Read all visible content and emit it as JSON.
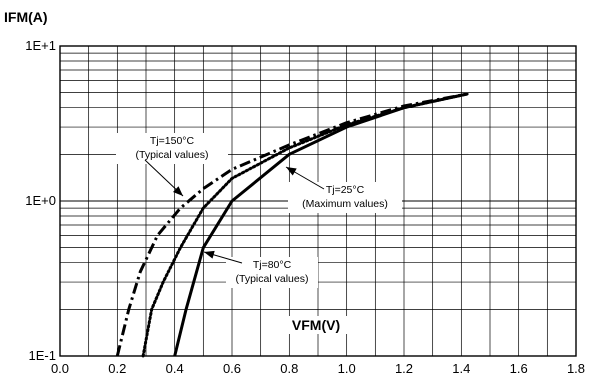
{
  "chart_data": {
    "type": "line",
    "xlabel": "VFM(V)",
    "ylabel": "IFM(A)",
    "xlim": [
      0,
      1.8
    ],
    "ylim": [
      0.1,
      10
    ],
    "yscale": "log",
    "grid": true,
    "x_ticks": [
      "0.0",
      "0.2",
      "0.4",
      "0.6",
      "0.8",
      "1.0",
      "1.2",
      "1.4",
      "1.6",
      "1.8"
    ],
    "y_ticks": [
      {
        "value": 10,
        "label": "1E+1"
      },
      {
        "value": 1,
        "label": "1E+0"
      },
      {
        "value": 0.1,
        "label": "1E-1"
      }
    ],
    "series": [
      {
        "name": "Tj=25°C (Maximum values)",
        "style": "solid",
        "points": [
          [
            0.4,
            0.1
          ],
          [
            0.44,
            0.2
          ],
          [
            0.5,
            0.5
          ],
          [
            0.6,
            1.0
          ],
          [
            0.8,
            2.0
          ],
          [
            1.0,
            3.0
          ],
          [
            1.2,
            4.0
          ],
          [
            1.42,
            4.9
          ]
        ]
      },
      {
        "name": "Tj=80°C (Typical values)",
        "style": "dotted",
        "points": [
          [
            0.29,
            0.1
          ],
          [
            0.32,
            0.2
          ],
          [
            0.36,
            0.3
          ],
          [
            0.42,
            0.5
          ],
          [
            0.5,
            0.9
          ],
          [
            0.6,
            1.4
          ],
          [
            0.8,
            2.2
          ],
          [
            1.0,
            3.1
          ],
          [
            1.2,
            4.0
          ],
          [
            1.42,
            4.9
          ]
        ]
      },
      {
        "name": "Tj=150°C (Typical values)",
        "style": "dash-dot",
        "points": [
          [
            0.2,
            0.1
          ],
          [
            0.24,
            0.2
          ],
          [
            0.28,
            0.35
          ],
          [
            0.34,
            0.6
          ],
          [
            0.42,
            0.9
          ],
          [
            0.5,
            1.2
          ],
          [
            0.6,
            1.6
          ],
          [
            0.8,
            2.3
          ],
          [
            1.0,
            3.2
          ],
          [
            1.2,
            4.1
          ],
          [
            1.42,
            4.9
          ]
        ]
      }
    ],
    "annotations": [
      {
        "series": 2,
        "lines": [
          "Tj=150°C",
          "(Typical values)"
        ]
      },
      {
        "series": 0,
        "lines": [
          "Tj=25°C",
          "(Maximum values)"
        ]
      },
      {
        "series": 1,
        "lines": [
          "Tj=80°C",
          "(Typical values)"
        ]
      }
    ]
  }
}
